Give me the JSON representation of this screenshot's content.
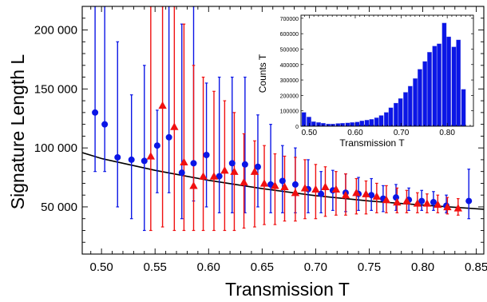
{
  "colors": {
    "blue": "#0b16e6",
    "red": "#f01010",
    "fit": "#000000",
    "frame": "#000000"
  },
  "chart_data": [
    {
      "type": "scatter",
      "xlabel": "Transmission T",
      "ylabel": "Signature Length L",
      "xlim": [
        0.482,
        0.857
      ],
      "ylim": [
        10000,
        220000
      ],
      "x_ticks": [
        0.5,
        0.55,
        0.6,
        0.65,
        0.7,
        0.75,
        0.8,
        0.85
      ],
      "x_tick_labels": [
        "0.50",
        "0.55",
        "0.60",
        "0.65",
        "0.70",
        "0.75",
        "0.80",
        "0.85"
      ],
      "y_ticks": [
        50000,
        100000,
        150000,
        200000
      ],
      "y_tick_labels": [
        "50 000",
        "100 000",
        "150 000",
        "200 000"
      ],
      "grid": false,
      "fit_curve": {
        "x": [
          0.482,
          0.5,
          0.55,
          0.6,
          0.65,
          0.7,
          0.75,
          0.8,
          0.857
        ],
        "y": [
          96000,
          91000,
          81000,
          72500,
          65500,
          59500,
          55000,
          51500,
          48000
        ]
      },
      "series": [
        {
          "marker": "circle",
          "color": "#0b16e6",
          "points": [
            {
              "x": 0.494,
              "y": 130000,
              "lo": 80000,
              "hi": 220000
            },
            {
              "x": 0.503,
              "y": 120000,
              "lo": 80000,
              "hi": 220000
            },
            {
              "x": 0.515,
              "y": 92000,
              "lo": 50000,
              "hi": 190000
            },
            {
              "x": 0.528,
              "y": 90000,
              "lo": 40000,
              "hi": 145000
            },
            {
              "x": 0.54,
              "y": 89000,
              "lo": 30000,
              "hi": 170000
            },
            {
              "x": 0.552,
              "y": 102000,
              "lo": 62000,
              "hi": 132000
            },
            {
              "x": 0.563,
              "y": 109000,
              "lo": 62000,
              "hi": 220000
            },
            {
              "x": 0.575,
              "y": 79000,
              "lo": 40000,
              "hi": 205000
            },
            {
              "x": 0.586,
              "y": 87000,
              "lo": 55000,
              "hi": 220000
            },
            {
              "x": 0.598,
              "y": 94000,
              "lo": 50000,
              "hi": 155000
            },
            {
              "x": 0.61,
              "y": 76000,
              "lo": 45000,
              "hi": 160000
            },
            {
              "x": 0.622,
              "y": 87000,
              "lo": 45000,
              "hi": 160000
            },
            {
              "x": 0.634,
              "y": 86000,
              "lo": 45000,
              "hi": 160000
            },
            {
              "x": 0.646,
              "y": 84000,
              "lo": 50000,
              "hi": 128000
            },
            {
              "x": 0.658,
              "y": 69000,
              "lo": 45000,
              "hi": 120000
            },
            {
              "x": 0.669,
              "y": 72000,
              "lo": 45000,
              "hi": 102000
            },
            {
              "x": 0.681,
              "y": 69000,
              "lo": 45000,
              "hi": 100000
            },
            {
              "x": 0.693,
              "y": 65000,
              "lo": 45000,
              "hi": 90000
            },
            {
              "x": 0.705,
              "y": 61000,
              "lo": 45000,
              "hi": 80000
            },
            {
              "x": 0.716,
              "y": 64000,
              "lo": 47000,
              "hi": 81000
            },
            {
              "x": 0.728,
              "y": 62000,
              "lo": 46000,
              "hi": 78000
            },
            {
              "x": 0.74,
              "y": 61000,
              "lo": 47000,
              "hi": 75000
            },
            {
              "x": 0.752,
              "y": 60000,
              "lo": 47000,
              "hi": 74000
            },
            {
              "x": 0.763,
              "y": 57000,
              "lo": 46000,
              "hi": 68000
            },
            {
              "x": 0.775,
              "y": 58000,
              "lo": 47000,
              "hi": 69000
            },
            {
              "x": 0.787,
              "y": 56000,
              "lo": 47000,
              "hi": 66000
            },
            {
              "x": 0.799,
              "y": 55000,
              "lo": 47000,
              "hi": 64000
            },
            {
              "x": 0.81,
              "y": 54000,
              "lo": 47000,
              "hi": 63000
            },
            {
              "x": 0.822,
              "y": 51000,
              "lo": 45000,
              "hi": 60000
            },
            {
              "x": 0.843,
              "y": 55000,
              "lo": 40000,
              "hi": 82000
            }
          ]
        },
        {
          "marker": "triangle",
          "color": "#f01010",
          "points": [
            {
              "x": 0.546,
              "y": 93000,
              "lo": 30000,
              "hi": 220000
            },
            {
              "x": 0.557,
              "y": 136000,
              "lo": 33000,
              "hi": 220000
            },
            {
              "x": 0.568,
              "y": 118000,
              "lo": 30000,
              "hi": 220000
            },
            {
              "x": 0.577,
              "y": 88000,
              "lo": 30000,
              "hi": 205000
            },
            {
              "x": 0.586,
              "y": 68000,
              "lo": 30000,
              "hi": 170000
            },
            {
              "x": 0.595,
              "y": 76000,
              "lo": 30000,
              "hi": 160000
            },
            {
              "x": 0.605,
              "y": 76000,
              "lo": 30000,
              "hi": 148000
            },
            {
              "x": 0.615,
              "y": 81000,
              "lo": 30000,
              "hi": 140000
            },
            {
              "x": 0.624,
              "y": 80000,
              "lo": 30000,
              "hi": 130000
            },
            {
              "x": 0.633,
              "y": 71000,
              "lo": 32000,
              "hi": 112000
            },
            {
              "x": 0.643,
              "y": 80000,
              "lo": 33000,
              "hi": 106000
            },
            {
              "x": 0.652,
              "y": 70000,
              "lo": 35000,
              "hi": 102000
            },
            {
              "x": 0.662,
              "y": 68000,
              "lo": 35000,
              "hi": 95000
            },
            {
              "x": 0.671,
              "y": 67000,
              "lo": 38000,
              "hi": 93000
            },
            {
              "x": 0.681,
              "y": 62000,
              "lo": 38000,
              "hi": 92000
            },
            {
              "x": 0.69,
              "y": 66000,
              "lo": 40000,
              "hi": 90000
            },
            {
              "x": 0.7,
              "y": 65000,
              "lo": 40000,
              "hi": 86000
            },
            {
              "x": 0.709,
              "y": 67000,
              "lo": 42000,
              "hi": 84000
            },
            {
              "x": 0.719,
              "y": 65000,
              "lo": 43000,
              "hi": 80000
            },
            {
              "x": 0.728,
              "y": 60000,
              "lo": 43000,
              "hi": 78000
            },
            {
              "x": 0.738,
              "y": 62000,
              "lo": 44000,
              "hi": 74000
            },
            {
              "x": 0.747,
              "y": 61000,
              "lo": 44000,
              "hi": 72000
            },
            {
              "x": 0.757,
              "y": 59000,
              "lo": 45000,
              "hi": 70000
            },
            {
              "x": 0.766,
              "y": 56000,
              "lo": 45000,
              "hi": 68000
            },
            {
              "x": 0.776,
              "y": 54000,
              "lo": 45000,
              "hi": 66000
            },
            {
              "x": 0.785,
              "y": 55000,
              "lo": 45000,
              "hi": 64000
            },
            {
              "x": 0.795,
              "y": 53000,
              "lo": 45000,
              "hi": 62000
            },
            {
              "x": 0.804,
              "y": 53000,
              "lo": 45000,
              "hi": 61000
            },
            {
              "x": 0.814,
              "y": 52000,
              "lo": 45000,
              "hi": 60000
            },
            {
              "x": 0.823,
              "y": 50000,
              "lo": 44000,
              "hi": 58000
            },
            {
              "x": 0.833,
              "y": 49000,
              "lo": 43000,
              "hi": 57000
            }
          ]
        }
      ]
    },
    {
      "type": "bar",
      "xlabel": "Transmission T",
      "ylabel": "Counts T",
      "xlim": [
        0.482,
        0.857
      ],
      "ylim": [
        0,
        720000
      ],
      "x_ticks": [
        0.5,
        0.6,
        0.7,
        0.8
      ],
      "x_tick_labels": [
        "0.50",
        "0.60",
        "0.70",
        "0.80"
      ],
      "y_ticks": [
        0,
        100000,
        200000,
        300000,
        400000,
        500000,
        600000,
        700000
      ],
      "y_tick_labels": [
        "0",
        "100000",
        "200000",
        "300000",
        "400000",
        "500000",
        "600000",
        "700000"
      ],
      "bar_color": "#0b16e6",
      "bin_width": 0.0105,
      "x": [
        0.489,
        0.5,
        0.51,
        0.521,
        0.531,
        0.542,
        0.552,
        0.563,
        0.573,
        0.584,
        0.594,
        0.605,
        0.615,
        0.626,
        0.636,
        0.647,
        0.657,
        0.668,
        0.678,
        0.689,
        0.699,
        0.71,
        0.72,
        0.731,
        0.741,
        0.752,
        0.762,
        0.773,
        0.783,
        0.794,
        0.804,
        0.815,
        0.825,
        0.836
      ],
      "values": [
        90000,
        60000,
        30000,
        25000,
        20000,
        15000,
        15000,
        18000,
        20000,
        22000,
        25000,
        28000,
        35000,
        40000,
        45000,
        55000,
        70000,
        90000,
        120000,
        150000,
        180000,
        220000,
        260000,
        310000,
        370000,
        420000,
        480000,
        520000,
        535000,
        670000,
        580000,
        515000,
        560000,
        240000
      ]
    }
  ]
}
